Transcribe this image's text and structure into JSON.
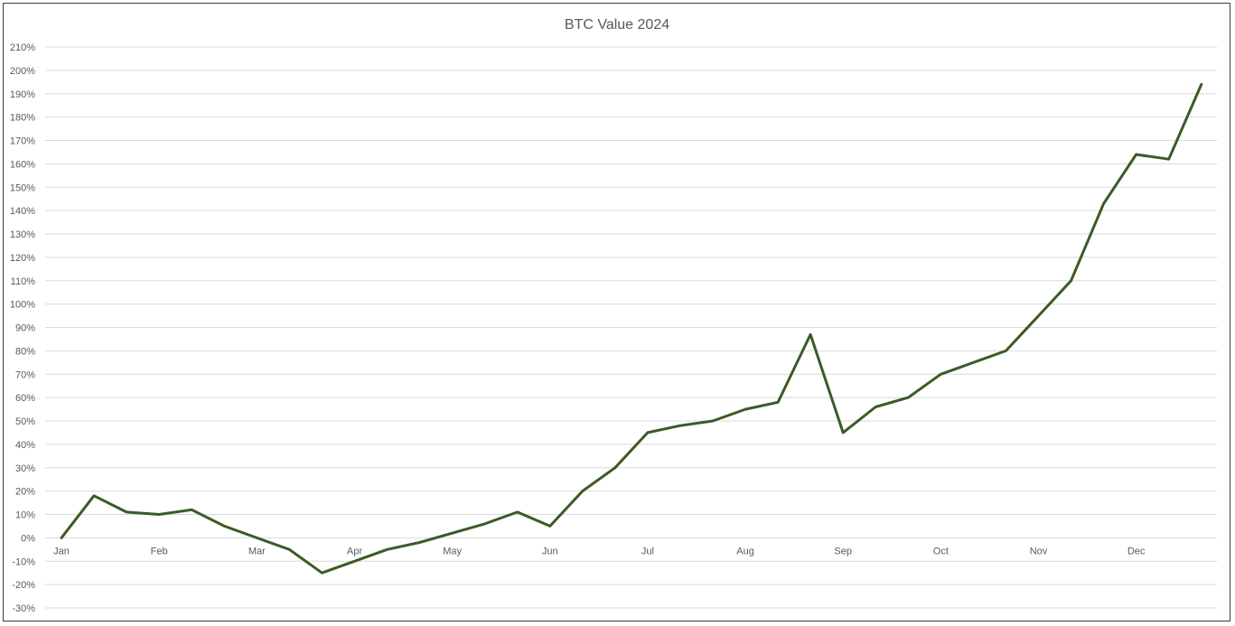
{
  "chart_data": {
    "type": "line",
    "title": "BTC Value 2024",
    "xlabel": "",
    "ylabel": "",
    "ylim": [
      -30,
      210
    ],
    "y_tick_step": 10,
    "y_tick_suffix": "%",
    "grid": true,
    "legend": "none",
    "x_tick_labels": [
      "Jan",
      "Feb",
      "Mar",
      "Apr",
      "May",
      "Jun",
      "Jul",
      "Aug",
      "Sep",
      "Oct",
      "Nov",
      "Dec"
    ],
    "x_tick_positions": [
      0,
      3,
      6,
      9,
      12,
      15,
      18,
      21,
      24,
      27,
      30,
      33
    ],
    "series": [
      {
        "color": "#3b5b27",
        "x": [
          0,
          1,
          2,
          3,
          4,
          5,
          6,
          7,
          8,
          9,
          10,
          11,
          12,
          13,
          14,
          15,
          16,
          17,
          18,
          19,
          20,
          21,
          22,
          23,
          24,
          25,
          26,
          27,
          28,
          29,
          30,
          31,
          32,
          33,
          34,
          35
        ],
        "values": [
          0,
          18,
          11,
          10,
          12,
          5,
          0,
          -5,
          -15,
          -10,
          -5,
          -2,
          2,
          6,
          11,
          5,
          20,
          30,
          45,
          48,
          50,
          55,
          58,
          87,
          45,
          56,
          60,
          70,
          75,
          80,
          95,
          110,
          143,
          164,
          162,
          194
        ]
      }
    ]
  }
}
